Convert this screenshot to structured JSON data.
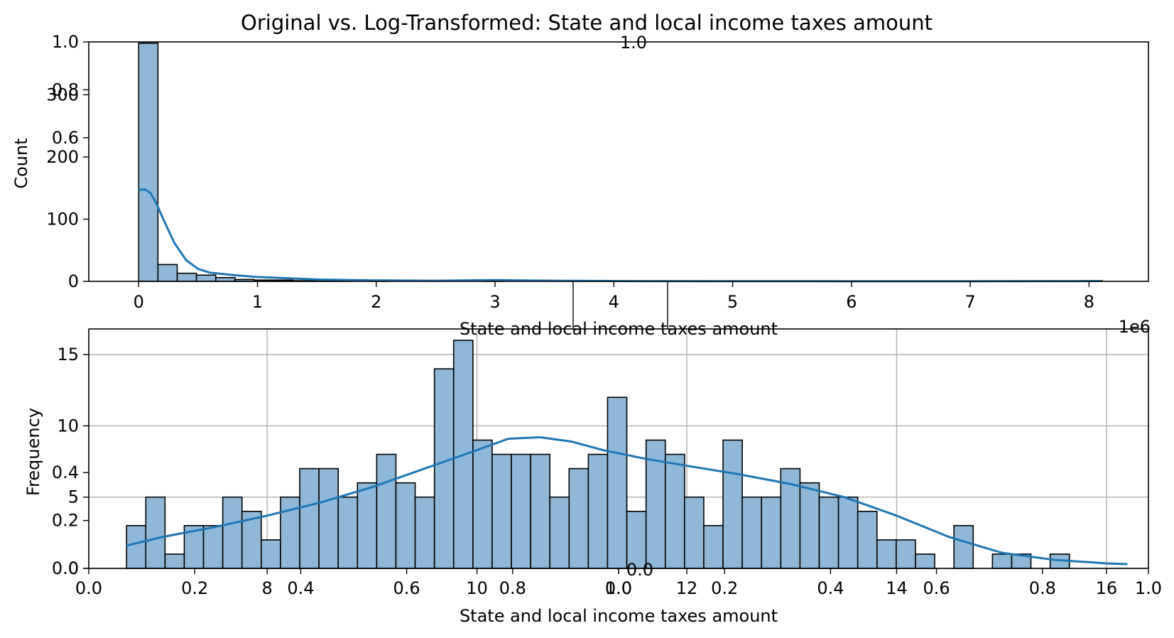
{
  "figure": {
    "suptitle": "Original vs. Log-Transformed: State and local income taxes amount"
  },
  "chart_data": [
    {
      "type": "bar",
      "panel": "original",
      "title": "",
      "xlabel": "State and local income taxes amount",
      "ylabel": "Count",
      "x_offset_text": "1e6",
      "xlim": [
        -0.42,
        8.5
      ],
      "ylim": [
        0,
        385
      ],
      "xticks": [
        0,
        1,
        2,
        3,
        4,
        5,
        6,
        7,
        8
      ],
      "yticks": [
        0,
        100,
        200,
        300
      ],
      "bin_edges": [
        0,
        0.1622,
        0.3244,
        0.4866,
        0.6488,
        0.811,
        0.9732,
        1.1354,
        1.2976,
        1.4598,
        1.622,
        1.7842,
        1.9464,
        2.1086,
        2.2708,
        2.433,
        2.5952,
        2.7574,
        2.9196,
        3.0818,
        3.244,
        3.4062,
        3.5684,
        3.7306,
        3.8928,
        4.055,
        4.2172,
        4.3794,
        4.5416,
        4.7038,
        4.866,
        5.0282,
        5.1904,
        5.3526,
        5.5148,
        5.677,
        5.8392,
        6.0014,
        6.1636,
        6.3258,
        6.488,
        6.6502,
        6.8124,
        6.9746,
        7.1368,
        7.299,
        7.4612,
        7.6234,
        7.7856,
        7.9478,
        8.11
      ],
      "counts": [
        383,
        27,
        13,
        10,
        6,
        3,
        2,
        2,
        1,
        1,
        1,
        0,
        1,
        0,
        0,
        0,
        0,
        0,
        1,
        0,
        0,
        0,
        0,
        0,
        0,
        0,
        0,
        0,
        0,
        0,
        0,
        0,
        0,
        0,
        0,
        0,
        0,
        0,
        0,
        0,
        0,
        0,
        0,
        0,
        0,
        0,
        0,
        0,
        0,
        1
      ],
      "kde": {
        "x": [
          0,
          0.05,
          0.1,
          0.15,
          0.2,
          0.3,
          0.4,
          0.5,
          0.6,
          0.8,
          1.0,
          1.5,
          2.0,
          2.5,
          3.0,
          3.5,
          4.0,
          5.0,
          6.0,
          7.0,
          8.1
        ],
        "y": [
          147,
          148,
          142,
          125,
          103,
          62,
          34,
          20,
          14,
          10,
          7,
          3,
          1.5,
          1,
          2,
          1,
          0.5,
          0.3,
          0.2,
          0.2,
          0.5
        ]
      },
      "ghost_axis": {
        "yticks": [
          "0.6",
          "0.8",
          "1.0"
        ],
        "top_label": "1.0"
      }
    },
    {
      "type": "bar",
      "panel": "log",
      "title": "",
      "xlabel": "State and local income taxes amount",
      "ylabel": "Frequency",
      "xlim": [
        6.3,
        16.4
      ],
      "ylim": [
        0,
        16.8
      ],
      "grid": true,
      "xticks": [
        8,
        10,
        12,
        14,
        16
      ],
      "yticks": [
        0,
        5,
        10,
        15
      ],
      "bin_start": 6.66,
      "bin_width": 0.1834,
      "counts": [
        3,
        5,
        1,
        3,
        3,
        5,
        4,
        2,
        5,
        7,
        7,
        5,
        6,
        8,
        6,
        5,
        14,
        16,
        9,
        8,
        8,
        8,
        5,
        7,
        8,
        12,
        4,
        9,
        8,
        5,
        3,
        9,
        5,
        5,
        7,
        6,
        5,
        5,
        4,
        2,
        2,
        1,
        0,
        3,
        0,
        1,
        1,
        0,
        1
      ],
      "kde": {
        "x": [
          6.66,
          7.0,
          7.5,
          8.0,
          8.5,
          9.0,
          9.5,
          10.0,
          10.3,
          10.6,
          10.9,
          11.2,
          11.6,
          12.0,
          12.5,
          13.0,
          13.5,
          14.0,
          14.5,
          15.0,
          15.5,
          16.0,
          16.2
        ],
        "y": [
          1.6,
          2.2,
          2.9,
          3.7,
          4.6,
          5.7,
          7.0,
          8.3,
          9.1,
          9.2,
          8.9,
          8.3,
          7.7,
          7.2,
          6.6,
          5.9,
          5.0,
          3.7,
          2.2,
          1.1,
          0.6,
          0.35,
          0.3
        ]
      },
      "ghost_axis": {
        "xticks": [
          "0.0",
          "0.2",
          "0.4",
          "0.6",
          "0.8",
          "1.0",
          "0.0",
          "0.2",
          "0.4",
          "0.6",
          "0.8",
          "1.0"
        ],
        "yticks": [
          "0.0",
          "0.2",
          "0.4"
        ],
        "top_label": "0.0"
      }
    }
  ],
  "colors": {
    "bar_fill": "#8fb8d8",
    "bar_edge": "#000000",
    "kde_line": "#1f77b4",
    "grid": "#b0b0b0"
  }
}
